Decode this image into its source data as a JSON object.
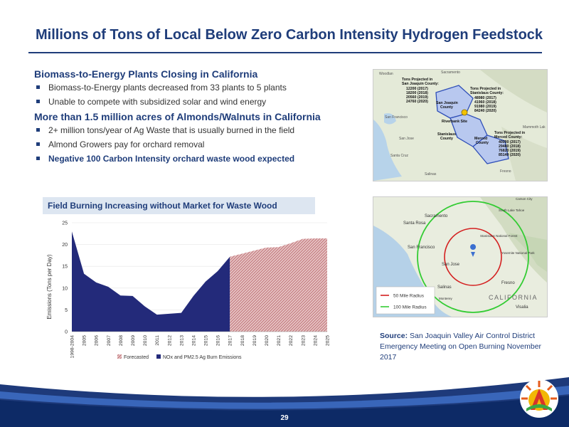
{
  "title": "Millions of Tons of Local Below Zero Carbon Intensity Hydrogen Feedstock",
  "section1": {
    "heading": "Biomass-to-Energy  Plants Closing in California",
    "bullets": [
      "Biomass-to-Energy plants decreased from 33 plants to 5 plants",
      "Unable to compete with subsidized solar and wind energy"
    ]
  },
  "section2": {
    "heading": "More than 1.5 million acres of Almonds/Walnuts  in California",
    "bullets": [
      "2+ million tons/year of Ag Waste that is usually burned in the field",
      "Almond Growers pay for orchard removal",
      "Negative 100 Carbon Intensity orchard waste wood expected"
    ]
  },
  "chart_title": "Field Burning Increasing without Market for Waste Wood",
  "chart_data": {
    "type": "area",
    "title": "Field Burning Increasing without Market for Waste Wood",
    "ylabel": "Emissions (Tons per Day)",
    "xlabel": "",
    "ylim": [
      0,
      25
    ],
    "yticks": [
      "0",
      "5",
      "10",
      "15",
      "20",
      "25"
    ],
    "categories": [
      "1998-2004",
      "2005",
      "2006",
      "2007",
      "2008",
      "2009",
      "2010",
      "2011",
      "2012",
      "2013",
      "2014",
      "2015",
      "2016",
      "2017",
      "2018",
      "2019",
      "2020",
      "2021",
      "2022",
      "2023",
      "2024",
      "2025"
    ],
    "series": [
      {
        "name": "NOx and PM2.5 Ag Burn Emissions",
        "color": "#232a7a",
        "values": [
          23,
          13.3,
          11.3,
          10.3,
          8.3,
          8.2,
          5.8,
          3.9,
          4.1,
          4.3,
          8.2,
          11.5,
          13.9,
          17.2,
          null,
          null,
          null,
          null,
          null,
          null,
          null,
          null
        ]
      },
      {
        "name": "Forecasted",
        "color": "#c9878b",
        "values": [
          null,
          null,
          null,
          null,
          null,
          null,
          null,
          null,
          null,
          null,
          null,
          null,
          null,
          17.2,
          17.9,
          18.6,
          19.3,
          19.4,
          20.3,
          21.3,
          21.4,
          21.4
        ]
      }
    ],
    "legend": "bottom"
  },
  "map1": {
    "labels": {
      "sanjoaquin": [
        "Tons Projected in",
        "San Joaquin County:",
        "12200 (2017)",
        "18200 (2018)",
        "20560 (2019)",
        "24760 (2020)"
      ],
      "stanislaus": [
        "Tons Projected in",
        "Stanislaus County:",
        "48980 (2017)",
        "41960 (2018)",
        "91980 (2019)",
        "84240 (2020)"
      ],
      "merced": [
        "Tons Projected in",
        "Merced County:",
        "40000 (2017)",
        "29480 (2018)",
        "76820 (2019)",
        "85140 (2020)"
      ],
      "county_sj": [
        "San Joaquin",
        "County"
      ],
      "county_st": [
        "Stanislaus",
        "County"
      ],
      "county_me": [
        "Merced",
        "County"
      ],
      "site": "Riverbank Site",
      "cities": [
        "Sacramento",
        "San Francisco",
        "San Jose",
        "Santa Cruz",
        "Salinas",
        "Fresno",
        "Mammoth Lak",
        "Woodlan"
      ]
    }
  },
  "map2": {
    "cities": [
      "Sacramento",
      "Santa Rosa",
      "San Francisco",
      "San Jose",
      "Fresno",
      "Salinas",
      "Visalia",
      "Yosemite National Park",
      "Stanislaus National Forest",
      "South Lake Tahoe",
      "Carson City",
      "Monterey"
    ],
    "state": "CALIFORNIA",
    "legend": [
      {
        "label": "50 Mile Radius",
        "color": "#d42020"
      },
      {
        "label": "100 Mile Radius",
        "color": "#33cc33"
      }
    ]
  },
  "source": {
    "label": "Source:",
    "text": "San Joaquin Valley Air Control District Emergency Meeting on Open Burning November 2017"
  },
  "page_number": "29"
}
